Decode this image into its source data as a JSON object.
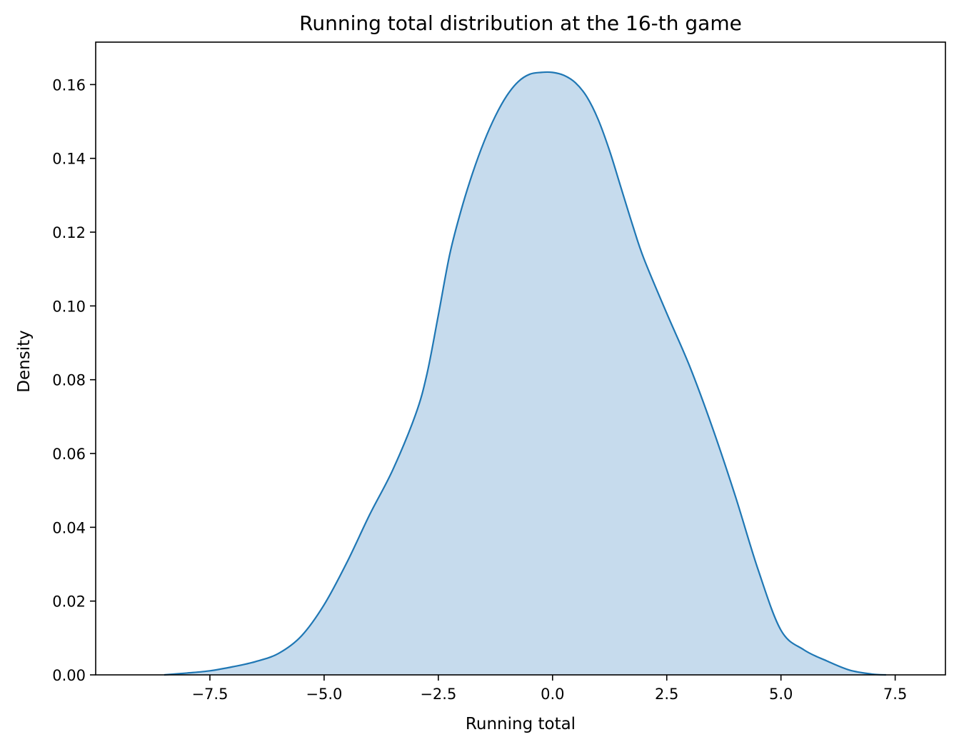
{
  "chart_data": {
    "type": "area",
    "title": "Running total distribution at the 16-th game",
    "xlabel": "Running total",
    "ylabel": "Density",
    "xlim": [
      -10.0,
      8.6
    ],
    "ylim": [
      0.0,
      0.1715
    ],
    "xticks": [
      -7.5,
      -5.0,
      -2.5,
      0.0,
      2.5,
      5.0,
      7.5
    ],
    "xtick_labels": [
      "−7.5",
      "−5.0",
      "−2.5",
      "0.0",
      "2.5",
      "5.0",
      "7.5"
    ],
    "yticks": [
      0.0,
      0.02,
      0.04,
      0.06,
      0.08,
      0.1,
      0.12,
      0.14,
      0.16
    ],
    "ytick_labels": [
      "0.00",
      "0.02",
      "0.04",
      "0.06",
      "0.08",
      "0.10",
      "0.12",
      "0.14",
      "0.16"
    ],
    "grid": false,
    "line_color": "#1f77b4",
    "fill_color": "#c6dbed",
    "series": [
      {
        "x": [
          -8.5,
          -8.0,
          -7.5,
          -7.0,
          -6.5,
          -6.0,
          -5.5,
          -5.0,
          -4.5,
          -4.0,
          -3.5,
          -3.0,
          -2.75,
          -2.5,
          -2.25,
          -2.0,
          -1.75,
          -1.5,
          -1.25,
          -1.0,
          -0.75,
          -0.5,
          -0.25,
          0.0,
          0.25,
          0.5,
          0.75,
          1.0,
          1.25,
          1.5,
          1.75,
          2.0,
          2.5,
          3.0,
          3.5,
          4.0,
          4.5,
          5.0,
          5.5,
          6.0,
          6.5,
          7.0,
          7.3
        ],
        "y": [
          0.0,
          0.0005,
          0.0011,
          0.0022,
          0.0036,
          0.0058,
          0.0105,
          0.019,
          0.0305,
          0.0435,
          0.0555,
          0.0705,
          0.0815,
          0.0975,
          0.114,
          0.126,
          0.136,
          0.1445,
          0.1515,
          0.157,
          0.1608,
          0.1628,
          0.1633,
          0.1633,
          0.1625,
          0.1605,
          0.1567,
          0.1505,
          0.142,
          0.132,
          0.122,
          0.1128,
          0.098,
          0.0837,
          0.067,
          0.0485,
          0.0285,
          0.0121,
          0.0068,
          0.0038,
          0.0013,
          0.0002,
          0.0
        ]
      }
    ]
  }
}
